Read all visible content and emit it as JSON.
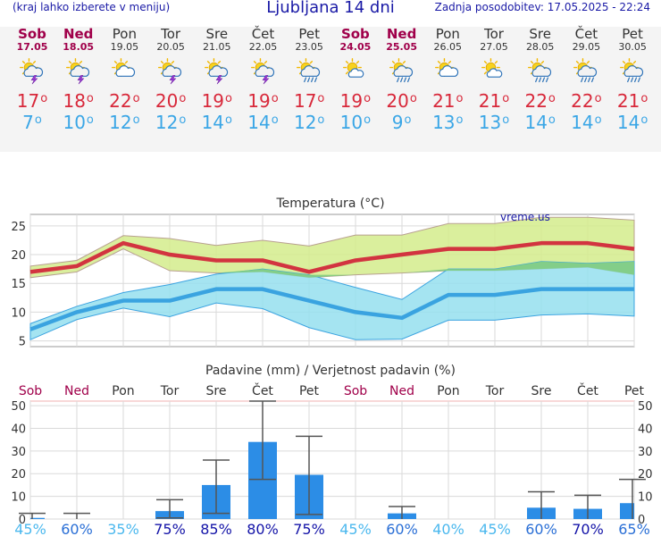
{
  "header": {
    "menu_hint": "(kraj lahko izberete v meniju)",
    "title": "Ljubljana 14 dni",
    "updated": "Zadnja posodobitev: 17.05.2025 - 22:24"
  },
  "colors": {
    "max_line": "#d23440",
    "min_line": "#3aa3e0",
    "max_band": "#d4ec8c",
    "min_band": "#95dfee",
    "overlap_band": "#7fcc7f",
    "weekend": "#a0004a",
    "precip_bar": "#2c8de6"
  },
  "days": [
    {
      "name": "Sob",
      "date": "17.05",
      "weekend": true,
      "icon": "sun-cloud-thunder-icon",
      "tmax": "17",
      "tmin": "7"
    },
    {
      "name": "Ned",
      "date": "18.05",
      "weekend": true,
      "icon": "sun-cloud-thunder-icon",
      "tmax": "18",
      "tmin": "10"
    },
    {
      "name": "Pon",
      "date": "19.05",
      "weekend": false,
      "icon": "sun-cloud-icon",
      "tmax": "22",
      "tmin": "12"
    },
    {
      "name": "Tor",
      "date": "20.05",
      "weekend": false,
      "icon": "sun-cloud-thunder-icon",
      "tmax": "20",
      "tmin": "12"
    },
    {
      "name": "Sre",
      "date": "21.05",
      "weekend": false,
      "icon": "sun-cloud-thunder-icon",
      "tmax": "19",
      "tmin": "14"
    },
    {
      "name": "Čet",
      "date": "22.05",
      "weekend": false,
      "icon": "sun-cloud-thunder-icon",
      "tmax": "19",
      "tmin": "14"
    },
    {
      "name": "Pet",
      "date": "23.05",
      "weekend": false,
      "icon": "sun-cloud-rain-icon",
      "tmax": "17",
      "tmin": "12"
    },
    {
      "name": "Sob",
      "date": "24.05",
      "weekend": true,
      "icon": "sun-cloud-light-icon",
      "tmax": "19",
      "tmin": "10"
    },
    {
      "name": "Ned",
      "date": "25.05",
      "weekend": true,
      "icon": "sun-cloud-rain-icon",
      "tmax": "20",
      "tmin": "9"
    },
    {
      "name": "Pon",
      "date": "26.05",
      "weekend": false,
      "icon": "sun-cloud-icon",
      "tmax": "21",
      "tmin": "13"
    },
    {
      "name": "Tor",
      "date": "27.05",
      "weekend": false,
      "icon": "sun-cloud-light-icon",
      "tmax": "21",
      "tmin": "13"
    },
    {
      "name": "Sre",
      "date": "28.05",
      "weekend": false,
      "icon": "sun-cloud-rain-icon",
      "tmax": "22",
      "tmin": "14"
    },
    {
      "name": "Čet",
      "date": "29.05",
      "weekend": false,
      "icon": "sun-cloud-rain-icon",
      "tmax": "22",
      "tmin": "14"
    },
    {
      "name": "Pet",
      "date": "30.05",
      "weekend": false,
      "icon": "sun-cloud-rain-icon",
      "tmax": "21",
      "tmin": "14"
    }
  ],
  "chart_data": [
    {
      "type": "line",
      "title": "Temperatura (°C)",
      "watermark": "vreme.us",
      "ylim": [
        4,
        27
      ],
      "yticks": [
        5,
        10,
        15,
        20,
        25
      ],
      "grid": true,
      "categories": [
        "17.05",
        "18.05",
        "19.05",
        "20.05",
        "21.05",
        "22.05",
        "23.05",
        "24.05",
        "25.05",
        "26.05",
        "27.05",
        "28.05",
        "29.05",
        "30.05"
      ],
      "series": [
        {
          "values": [
            17,
            18,
            22,
            20,
            19,
            19,
            17,
            19,
            20,
            21,
            21,
            22,
            22,
            21
          ]
        },
        {
          "values": [
            7,
            10,
            12,
            12,
            14,
            14,
            12,
            10,
            9,
            13,
            13,
            14,
            14,
            14
          ]
        }
      ],
      "max_band_upper": [
        18,
        19,
        23.3,
        22.8,
        21.6,
        22.5,
        21.5,
        23.4,
        23.4,
        25.4,
        25.4,
        26.5,
        26.5,
        26
      ],
      "max_band_lower": [
        16,
        17,
        21,
        17.2,
        16.8,
        17,
        16,
        16.5,
        16.8,
        17.2,
        17.2,
        17.5,
        17.8,
        16.5
      ],
      "min_band_upper": [
        8,
        11,
        13.4,
        14.8,
        16.6,
        17.5,
        16.5,
        14.3,
        12.2,
        17.5,
        17.5,
        18.8,
        18.5,
        18.8
      ],
      "min_band_lower": [
        5.2,
        8.7,
        10.7,
        9.2,
        11.6,
        10.6,
        7.3,
        5.2,
        5.3,
        8.6,
        8.6,
        9.5,
        9.7,
        9.3
      ]
    },
    {
      "type": "bar",
      "title": "Padavine (mm) / Verjetnost padavin (%)",
      "ylim": [
        0,
        52
      ],
      "yticks": [
        0,
        10,
        20,
        30,
        40,
        50
      ],
      "grid": true,
      "categories": [
        "Sob",
        "Ned",
        "Pon",
        "Tor",
        "Sre",
        "Čet",
        "Pet",
        "Sob",
        "Ned",
        "Pon",
        "Tor",
        "Sre",
        "Čet",
        "Pet"
      ],
      "weekend": [
        true,
        true,
        false,
        false,
        false,
        false,
        false,
        true,
        true,
        false,
        false,
        false,
        false,
        false
      ],
      "values": [
        0.5,
        0,
        0,
        3.5,
        15,
        34,
        19.5,
        0,
        2.5,
        0,
        0,
        5,
        4.5,
        7
      ],
      "error_low": [
        0,
        0,
        0,
        0.5,
        2.5,
        17.5,
        2,
        0,
        0,
        0,
        0,
        0,
        0,
        0
      ],
      "error_high": [
        2.5,
        2.5,
        0,
        8.5,
        26,
        52,
        36.5,
        0,
        5.5,
        0,
        0,
        12,
        10.5,
        17.5
      ],
      "probability": [
        "45%",
        "60%",
        "35%",
        "75%",
        "85%",
        "80%",
        "75%",
        "45%",
        "60%",
        "40%",
        "45%",
        "60%",
        "70%",
        "65%"
      ],
      "probability_level": [
        45,
        60,
        35,
        75,
        85,
        80,
        75,
        45,
        60,
        40,
        45,
        60,
        70,
        65
      ]
    }
  ]
}
